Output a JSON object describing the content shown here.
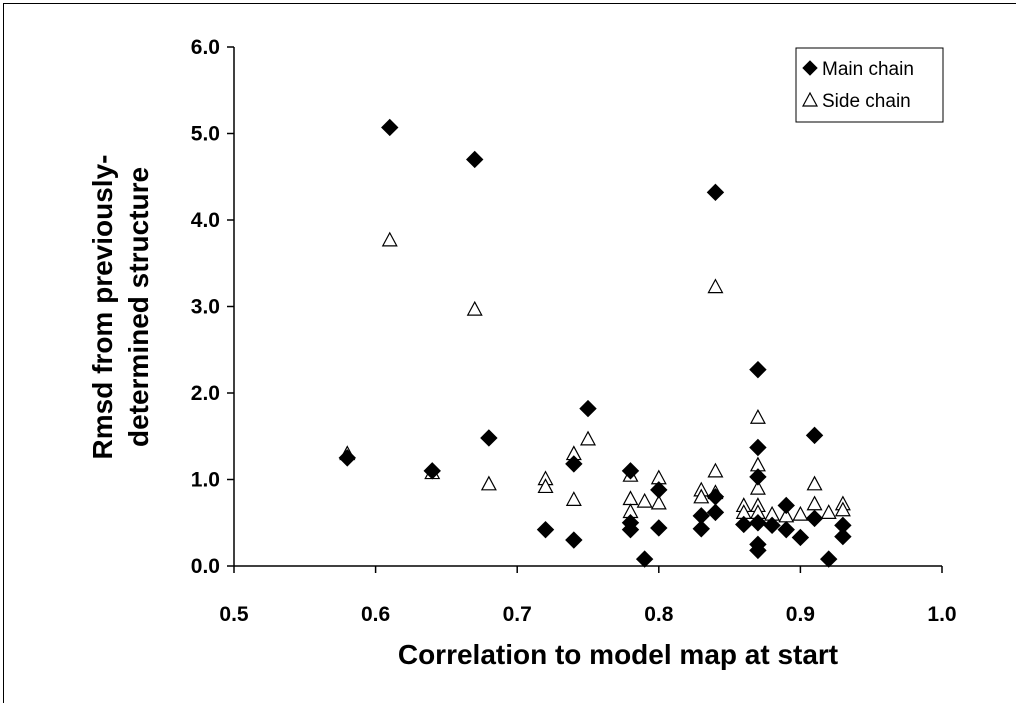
{
  "chart_data": {
    "type": "scatter",
    "xlabel": "Correlation to model map at start",
    "ylabel_lines": [
      "Rmsd from previously-",
      "determined structure"
    ],
    "xlim": [
      0.5,
      1.0
    ],
    "ylim": [
      0.0,
      6.0
    ],
    "x_ticks": [
      "0.5",
      "0.6",
      "0.7",
      "0.8",
      "0.9",
      "1.0"
    ],
    "y_ticks": [
      "0.0",
      "1.0",
      "2.0",
      "3.0",
      "4.0",
      "5.0",
      "6.0"
    ],
    "grid": false,
    "legend_position": "top-right",
    "series": [
      {
        "name": "Main chain",
        "marker": "filled-diamond",
        "color": "#000000",
        "points": [
          [
            0.58,
            1.25
          ],
          [
            0.61,
            5.07
          ],
          [
            0.64,
            1.1
          ],
          [
            0.67,
            4.7
          ],
          [
            0.68,
            1.48
          ],
          [
            0.72,
            0.42
          ],
          [
            0.74,
            1.18
          ],
          [
            0.74,
            0.3
          ],
          [
            0.75,
            1.82
          ],
          [
            0.78,
            1.1
          ],
          [
            0.78,
            0.5
          ],
          [
            0.78,
            0.42
          ],
          [
            0.79,
            0.08
          ],
          [
            0.8,
            0.88
          ],
          [
            0.8,
            0.44
          ],
          [
            0.83,
            0.58
          ],
          [
            0.83,
            0.43
          ],
          [
            0.84,
            4.32
          ],
          [
            0.84,
            0.62
          ],
          [
            0.84,
            0.8
          ],
          [
            0.86,
            0.48
          ],
          [
            0.87,
            2.27
          ],
          [
            0.87,
            1.37
          ],
          [
            0.87,
            1.03
          ],
          [
            0.87,
            0.5
          ],
          [
            0.87,
            0.25
          ],
          [
            0.87,
            0.18
          ],
          [
            0.88,
            0.47
          ],
          [
            0.89,
            0.42
          ],
          [
            0.89,
            0.7
          ],
          [
            0.9,
            0.33
          ],
          [
            0.91,
            1.51
          ],
          [
            0.91,
            0.55
          ],
          [
            0.92,
            0.08
          ],
          [
            0.93,
            0.47
          ],
          [
            0.93,
            0.34
          ]
        ]
      },
      {
        "name": "Side chain",
        "marker": "open-triangle",
        "color": "#000000",
        "points": [
          [
            0.58,
            1.3
          ],
          [
            0.61,
            3.77
          ],
          [
            0.64,
            1.08
          ],
          [
            0.67,
            2.97
          ],
          [
            0.68,
            0.95
          ],
          [
            0.72,
            1.01
          ],
          [
            0.72,
            0.92
          ],
          [
            0.74,
            1.3
          ],
          [
            0.74,
            0.77
          ],
          [
            0.75,
            1.47
          ],
          [
            0.78,
            1.05
          ],
          [
            0.78,
            0.78
          ],
          [
            0.78,
            0.63
          ],
          [
            0.79,
            0.75
          ],
          [
            0.8,
            1.02
          ],
          [
            0.8,
            0.73
          ],
          [
            0.83,
            0.88
          ],
          [
            0.83,
            0.8
          ],
          [
            0.84,
            3.23
          ],
          [
            0.84,
            1.1
          ],
          [
            0.84,
            0.85
          ],
          [
            0.86,
            0.7
          ],
          [
            0.86,
            0.62
          ],
          [
            0.87,
            1.72
          ],
          [
            0.87,
            1.17
          ],
          [
            0.87,
            0.9
          ],
          [
            0.87,
            0.7
          ],
          [
            0.87,
            0.62
          ],
          [
            0.88,
            0.6
          ],
          [
            0.89,
            0.58
          ],
          [
            0.9,
            0.6
          ],
          [
            0.91,
            0.95
          ],
          [
            0.91,
            0.72
          ],
          [
            0.92,
            0.62
          ],
          [
            0.93,
            0.72
          ],
          [
            0.93,
            0.65
          ]
        ]
      }
    ]
  }
}
